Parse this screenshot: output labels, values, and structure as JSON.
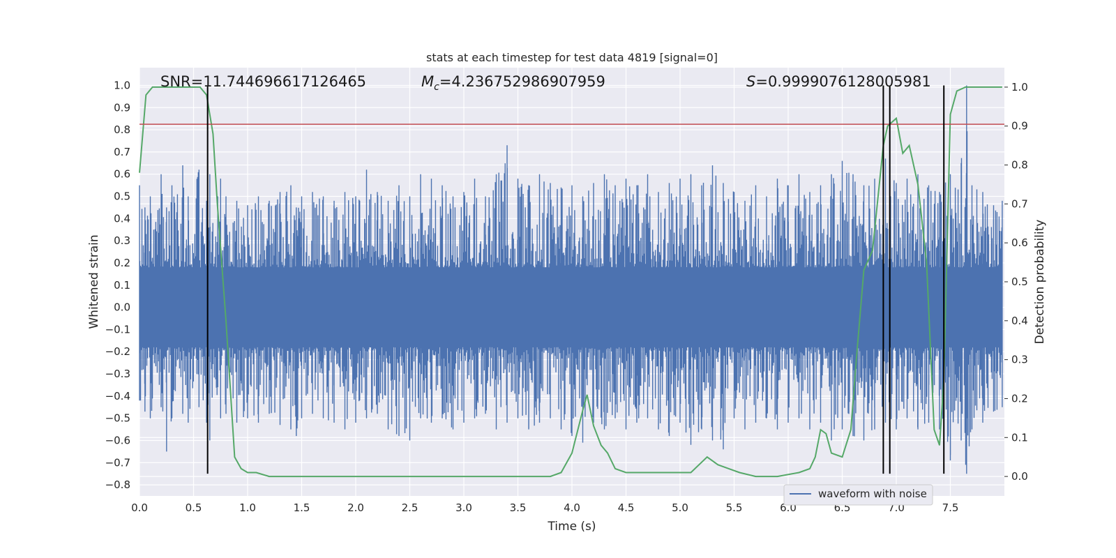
{
  "chart_data": {
    "type": "line",
    "title": "stats at each timestep for test data 4819 [signal=0]",
    "xlabel": "Time (s)",
    "ylabel": "Whitened strain",
    "y2label": "Detection probability",
    "xlim": [
      0.0,
      8.0
    ],
    "ylim": [
      -0.85,
      1.08
    ],
    "y2lim": [
      -0.05,
      1.05
    ],
    "xticks": [
      0.0,
      0.5,
      1.0,
      1.5,
      2.0,
      2.5,
      3.0,
      3.5,
      4.0,
      4.5,
      5.0,
      5.5,
      6.0,
      6.5,
      7.0,
      7.5
    ],
    "yticks": [
      -0.8,
      -0.7,
      -0.6,
      -0.5,
      -0.4,
      -0.3,
      -0.2,
      -0.1,
      0.0,
      0.1,
      0.2,
      0.3,
      0.4,
      0.5,
      0.6,
      0.7,
      0.8,
      0.9,
      1.0
    ],
    "y2ticks": [
      0.0,
      0.1,
      0.2,
      0.3,
      0.4,
      0.5,
      0.6,
      0.7,
      0.8,
      0.9,
      1.0
    ],
    "grid": true,
    "legend_position": "lower-right",
    "annotations": {
      "snr": "SNR=11.744696617126465",
      "mc_prefix": "M",
      "mc_sub": "c",
      "mc_value": "=4.236752986907959",
      "s_prefix": "S",
      "s_value": "=0.9999076128005981"
    },
    "series": [
      {
        "name": "waveform with noise",
        "axis": "left",
        "color": "#4c72b0",
        "envelope_approx": {
          "x": [
            0.0,
            0.05,
            0.1,
            0.2,
            0.25,
            0.3,
            0.4,
            0.45,
            0.55,
            0.62,
            0.65,
            0.75,
            0.8,
            0.9,
            1.0,
            1.1,
            1.2,
            1.3,
            1.4,
            1.45,
            1.5,
            1.6,
            1.7,
            1.8,
            1.9,
            2.0,
            2.1,
            2.2,
            2.3,
            2.4,
            2.5,
            2.6,
            2.7,
            2.8,
            2.9,
            3.0,
            3.1,
            3.2,
            3.3,
            3.4,
            3.5,
            3.6,
            3.7,
            3.8,
            3.9,
            4.0,
            4.1,
            4.2,
            4.3,
            4.4,
            4.5,
            4.6,
            4.7,
            4.8,
            4.9,
            5.0,
            5.1,
            5.2,
            5.3,
            5.4,
            5.5,
            5.6,
            5.7,
            5.8,
            5.9,
            6.0,
            6.1,
            6.2,
            6.3,
            6.4,
            6.5,
            6.6,
            6.7,
            6.8,
            6.9,
            7.0,
            7.1,
            7.2,
            7.3,
            7.4,
            7.5,
            7.6,
            7.65,
            7.7,
            7.8,
            7.9,
            7.98
          ],
          "upper": [
            0.55,
            0.45,
            0.5,
            0.6,
            0.45,
            0.55,
            0.64,
            0.5,
            0.62,
            0.48,
            0.6,
            0.58,
            0.5,
            0.48,
            0.46,
            0.5,
            0.48,
            0.52,
            0.55,
            0.45,
            0.5,
            0.52,
            0.5,
            0.48,
            0.52,
            0.5,
            0.62,
            0.52,
            0.48,
            0.55,
            0.5,
            0.6,
            0.58,
            0.55,
            0.5,
            0.52,
            0.58,
            0.5,
            0.6,
            0.73,
            0.58,
            0.55,
            0.6,
            0.56,
            0.54,
            0.55,
            0.5,
            0.56,
            0.6,
            0.55,
            0.58,
            0.55,
            0.6,
            0.52,
            0.56,
            0.58,
            0.6,
            0.55,
            0.64,
            0.56,
            0.52,
            0.48,
            0.55,
            0.5,
            0.58,
            0.55,
            0.6,
            0.52,
            0.55,
            0.6,
            0.66,
            0.6,
            0.55,
            0.58,
            0.67,
            0.56,
            0.58,
            0.6,
            0.55,
            0.52,
            0.6,
            0.65,
            1.0,
            0.55,
            0.52,
            0.46,
            0.48
          ],
          "lower": [
            -0.42,
            -0.47,
            -0.5,
            -0.45,
            -0.65,
            -0.5,
            -0.48,
            -0.52,
            -0.45,
            -0.52,
            -0.6,
            -0.5,
            -0.48,
            -0.52,
            -0.5,
            -0.52,
            -0.48,
            -0.53,
            -0.55,
            -0.58,
            -0.5,
            -0.48,
            -0.5,
            -0.52,
            -0.55,
            -0.52,
            -0.5,
            -0.48,
            -0.55,
            -0.58,
            -0.6,
            -0.5,
            -0.52,
            -0.5,
            -0.55,
            -0.52,
            -0.5,
            -0.48,
            -0.55,
            -0.52,
            -0.5,
            -0.55,
            -0.52,
            -0.5,
            -0.55,
            -0.58,
            -0.61,
            -0.52,
            -0.55,
            -0.5,
            -0.55,
            -0.52,
            -0.5,
            -0.55,
            -0.58,
            -0.52,
            -0.62,
            -0.55,
            -0.6,
            -0.64,
            -0.5,
            -0.55,
            -0.52,
            -0.5,
            -0.55,
            -0.52,
            -0.5,
            -0.55,
            -0.52,
            -0.6,
            -0.55,
            -0.58,
            -0.6,
            -0.55,
            -0.52,
            -0.55,
            -0.5,
            -0.55,
            -0.52,
            -0.55,
            -0.69,
            -0.6,
            -0.75,
            -0.55,
            -0.52,
            -0.47,
            -0.45
          ]
        }
      },
      {
        "name": "",
        "axis": "right",
        "color": "#55a868",
        "x": [
          0.0,
          0.06,
          0.12,
          0.2,
          0.3,
          0.4,
          0.5,
          0.56,
          0.62,
          0.68,
          0.72,
          0.8,
          0.88,
          0.94,
          1.0,
          1.08,
          1.2,
          1.5,
          1.8,
          2.0,
          2.5,
          2.8,
          3.0,
          3.3,
          3.6,
          3.8,
          3.9,
          4.0,
          4.1,
          4.14,
          4.2,
          4.27,
          4.33,
          4.4,
          4.5,
          4.6,
          4.8,
          5.0,
          5.1,
          5.25,
          5.35,
          5.45,
          5.55,
          5.7,
          5.9,
          6.1,
          6.2,
          6.25,
          6.3,
          6.35,
          6.4,
          6.5,
          6.58,
          6.63,
          6.7,
          6.78,
          6.88,
          6.92,
          7.0,
          7.06,
          7.12,
          7.2,
          7.28,
          7.35,
          7.4,
          7.44,
          7.5,
          7.56,
          7.64,
          7.7,
          7.8,
          7.9,
          7.98
        ],
        "y": [
          0.78,
          0.98,
          1.0,
          1.0,
          1.0,
          1.0,
          1.0,
          1.0,
          0.98,
          0.88,
          0.7,
          0.4,
          0.05,
          0.02,
          0.01,
          0.01,
          0.0,
          0.0,
          0.0,
          0.0,
          0.0,
          0.0,
          0.0,
          0.0,
          0.0,
          0.0,
          0.01,
          0.06,
          0.17,
          0.21,
          0.13,
          0.08,
          0.06,
          0.02,
          0.01,
          0.01,
          0.01,
          0.01,
          0.01,
          0.05,
          0.03,
          0.02,
          0.01,
          0.0,
          0.0,
          0.01,
          0.02,
          0.05,
          0.12,
          0.11,
          0.06,
          0.05,
          0.12,
          0.3,
          0.53,
          0.58,
          0.85,
          0.9,
          0.92,
          0.83,
          0.85,
          0.75,
          0.55,
          0.12,
          0.08,
          0.25,
          0.93,
          0.99,
          1.0,
          1.0,
          1.0,
          1.0,
          1.0
        ]
      }
    ],
    "threshold_line": {
      "axis": "left",
      "value": 0.825,
      "color": "#c44e52"
    },
    "vertical_markers": {
      "x": [
        0.63,
        6.88,
        6.94,
        7.44
      ],
      "ymin": -0.75,
      "ymax": 1.0,
      "color": "#000000"
    }
  }
}
